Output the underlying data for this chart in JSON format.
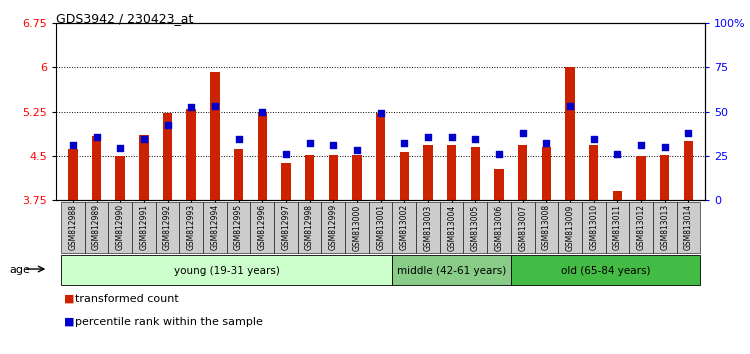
{
  "title": "GDS3942 / 230423_at",
  "samples": [
    "GSM812988",
    "GSM812989",
    "GSM812990",
    "GSM812991",
    "GSM812992",
    "GSM812993",
    "GSM812994",
    "GSM812995",
    "GSM812996",
    "GSM812997",
    "GSM812998",
    "GSM812999",
    "GSM813000",
    "GSM813001",
    "GSM813002",
    "GSM813003",
    "GSM813004",
    "GSM813005",
    "GSM813006",
    "GSM813007",
    "GSM813008",
    "GSM813009",
    "GSM813010",
    "GSM813011",
    "GSM813012",
    "GSM813013",
    "GSM813014"
  ],
  "red_bars": [
    4.62,
    4.83,
    4.5,
    4.85,
    5.22,
    5.3,
    5.92,
    4.62,
    5.25,
    4.38,
    4.52,
    4.52,
    4.52,
    5.22,
    4.57,
    4.68,
    4.68,
    4.65,
    4.28,
    4.68,
    4.65,
    6.0,
    4.68,
    3.9,
    4.5,
    4.52,
    4.75
  ],
  "blue_dots": [
    4.68,
    4.82,
    4.63,
    4.78,
    5.02,
    5.32,
    5.35,
    4.78,
    5.25,
    4.53,
    4.72,
    4.68,
    4.6,
    5.22,
    4.72,
    4.82,
    4.82,
    4.78,
    4.53,
    4.88,
    4.72,
    5.35,
    4.78,
    4.53,
    4.68,
    4.65,
    4.88
  ],
  "ylim_left": [
    3.75,
    6.75
  ],
  "ylim_right": [
    0,
    100
  ],
  "yticks_left": [
    3.75,
    4.5,
    5.25,
    6.0,
    6.75
  ],
  "ytick_labels_left": [
    "3.75",
    "4.5",
    "5.25",
    "6",
    "6.75"
  ],
  "yticks_right": [
    0,
    25,
    50,
    75,
    100
  ],
  "ytick_labels_right": [
    "0",
    "25",
    "50",
    "75",
    "100%"
  ],
  "hlines": [
    4.5,
    5.25,
    6.0
  ],
  "bar_color": "#CC2200",
  "dot_color": "#0000CC",
  "bar_bottom": 3.75,
  "groups": [
    {
      "label": "young (19-31 years)",
      "start": 0,
      "end": 14,
      "color": "#CCFFCC"
    },
    {
      "label": "middle (42-61 years)",
      "start": 14,
      "end": 19,
      "color": "#88CC88"
    },
    {
      "label": "old (65-84 years)",
      "start": 19,
      "end": 27,
      "color": "#44BB44"
    }
  ],
  "age_label": "age",
  "legend_items": [
    {
      "color": "#CC2200",
      "label": "transformed count"
    },
    {
      "color": "#0000CC",
      "label": "percentile rank within the sample"
    }
  ],
  "tick_bg_color": "#CCCCCC",
  "bar_width": 0.4
}
